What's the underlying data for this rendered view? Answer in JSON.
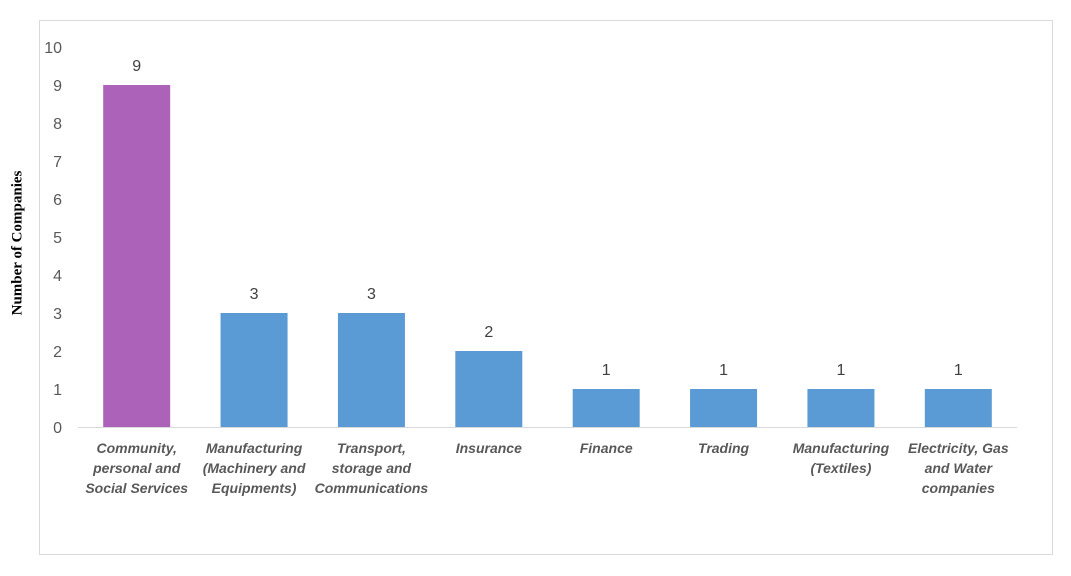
{
  "chart_data": {
    "type": "bar",
    "title": "",
    "xlabel": "",
    "ylabel": "Number of Companies",
    "ylim": [
      0,
      10
    ],
    "yticks": [
      0,
      1,
      2,
      3,
      4,
      5,
      6,
      7,
      8,
      9,
      10
    ],
    "grid": false,
    "legend": "none",
    "categories": [
      "Community, personal and Social Services",
      "Manufacturing (Machinery and Equipments)",
      "Transport, storage and Communications",
      "Insurance",
      "Finance",
      "Trading",
      "Manufacturing (Textiles)",
      "Electricity, Gas and Water companies"
    ],
    "category_lines": [
      [
        "Community,",
        "personal and",
        "Social Services"
      ],
      [
        "Manufacturing",
        "(Machinery and",
        "Equipments)"
      ],
      [
        "Transport,",
        "storage and",
        "Communications"
      ],
      [
        "Insurance"
      ],
      [
        "Finance"
      ],
      [
        "Trading"
      ],
      [
        "Manufacturing",
        "(Textiles)"
      ],
      [
        "Electricity, Gas",
        "and Water",
        "companies"
      ]
    ],
    "values": [
      9,
      3,
      3,
      2,
      1,
      1,
      1,
      1
    ],
    "colors": [
      "#ad62b9",
      "#5b9bd5",
      "#5b9bd5",
      "#5b9bd5",
      "#5b9bd5",
      "#5b9bd5",
      "#5b9bd5",
      "#5b9bd5"
    ]
  }
}
